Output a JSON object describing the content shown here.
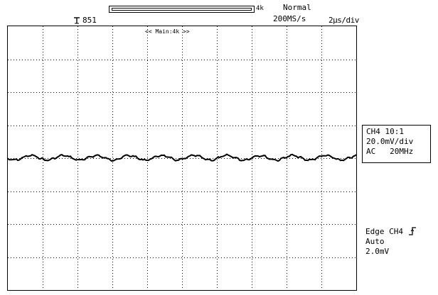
{
  "header": {
    "trigger_position": "851",
    "record_length": "4k",
    "acquisition_mode": "Normal",
    "sample_rate": "200MS/s",
    "timebase": "2µs/div"
  },
  "screen": {
    "zoom_label": "<< Main:4k >>",
    "grid_divisions": {
      "horizontal": 10,
      "vertical": 8
    },
    "trace_color": "#000000"
  },
  "channel": {
    "line1": "CH4 10:1",
    "line2": "20.0mV/div",
    "line3": "AC   20MHz"
  },
  "trigger": {
    "type": "Edge CH4",
    "edge_icon": "rising-edge-icon",
    "mode": "Auto",
    "level": "2.0mV"
  }
}
